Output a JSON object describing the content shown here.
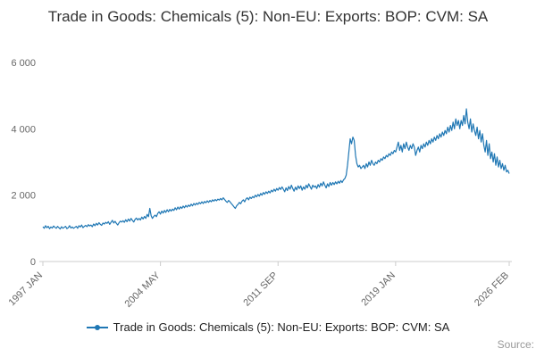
{
  "page": {
    "title": "Trade in Goods: Chemicals (5): Non-EU: Exports: BOP: CVM: SA",
    "source_label": "Source:"
  },
  "legend": {
    "label": "Trade in Goods: Chemicals (5): Non-EU: Exports: BOP: CVM: SA"
  },
  "chart_data": {
    "type": "line",
    "title": "Trade in Goods: Chemicals (5): Non-EU: Exports: BOP: CVM: SA",
    "xlabel": "",
    "ylabel": "",
    "ylim": [
      0,
      6000
    ],
    "grid": false,
    "legend_position": "bottom",
    "line_color": "#1f77b4",
    "axis_color": "#cccccc",
    "frequency": "monthly",
    "start": "1997 JAN",
    "end": "2026 FEB",
    "y_ticks": [
      0,
      2000,
      4000,
      6000
    ],
    "y_tick_labels": [
      "0",
      "2 000",
      "4 000",
      "6 000"
    ],
    "x_tick_labels": [
      "1997 JAN",
      "2004 MAY",
      "2011 SEP",
      "2019 JAN",
      "2026 FEB"
    ],
    "x_tick_positions": [
      0,
      88,
      176,
      264,
      349
    ],
    "series": [
      {
        "name": "Trade in Goods: Chemicals (5): Non-EU: Exports: BOP: CVM: SA",
        "values": [
          1050,
          1000,
          1080,
          1020,
          1060,
          990,
          1040,
          1010,
          1070,
          1030,
          1000,
          1060,
          1020,
          980,
          1050,
          1000,
          1030,
          1060,
          990,
          1020,
          1080,
          1010,
          1040,
          1000,
          1030,
          1060,
          1000,
          1080,
          1040,
          1100,
          1020,
          1060,
          1090,
          1050,
          1110,
          1070,
          1100,
          1050,
          1130,
          1080,
          1150,
          1100,
          1170,
          1120,
          1090,
          1160,
          1130,
          1180,
          1150,
          1200,
          1120,
          1180,
          1240,
          1160,
          1210,
          1150,
          1100,
          1170,
          1220,
          1190,
          1230,
          1180,
          1260,
          1200,
          1280,
          1220,
          1300,
          1240,
          1190,
          1270,
          1310,
          1250,
          1300,
          1250,
          1340,
          1280,
          1360,
          1300,
          1420,
          1350,
          1600,
          1380,
          1300,
          1360,
          1400,
          1350,
          1450,
          1500,
          1430,
          1520,
          1460,
          1540,
          1480,
          1560,
          1500,
          1570,
          1520,
          1580,
          1540,
          1620,
          1560,
          1640,
          1580,
          1650,
          1600,
          1670,
          1620,
          1690,
          1640,
          1700,
          1660,
          1730,
          1680,
          1750,
          1700,
          1760,
          1720,
          1780,
          1740,
          1800,
          1750,
          1810,
          1770,
          1830,
          1780,
          1840,
          1800,
          1860,
          1820,
          1870,
          1830,
          1880,
          1850,
          1900,
          1860,
          1920,
          1870,
          1820,
          1780,
          1840,
          1800,
          1750,
          1700,
          1650,
          1600,
          1680,
          1720,
          1780,
          1740,
          1820,
          1860,
          1800,
          1880,
          1920,
          1860,
          1940,
          1900,
          1960,
          1920,
          2000,
          1950,
          2020,
          1970,
          2050,
          2000,
          2080,
          2030,
          2100,
          2050,
          2120,
          2070,
          2150,
          2100,
          2180,
          2120,
          2200,
          2150,
          2230,
          2170,
          2250,
          2180,
          2100,
          2220,
          2140,
          2260,
          2180,
          2300,
          2200,
          2120,
          2240,
          2160,
          2280,
          2200,
          2280,
          2150,
          2250,
          2180,
          2300,
          2220,
          2340,
          2260,
          2180,
          2300,
          2240,
          2280,
          2200,
          2320,
          2240,
          2360,
          2280,
          2400,
          2300,
          2220,
          2340,
          2260,
          2380,
          2300,
          2380,
          2320,
          2400,
          2340,
          2420,
          2360,
          2440,
          2380,
          2460,
          2500,
          2600,
          2900,
          3300,
          3700,
          3550,
          3750,
          3650,
          3200,
          2950,
          2850,
          2900,
          2800,
          2850,
          2900,
          2800,
          2950,
          2850,
          3000,
          2900,
          3050,
          2950,
          2900,
          3000,
          2950,
          3050,
          3000,
          3100,
          3050,
          3150,
          3100,
          3200,
          3150,
          3250,
          3200,
          3300,
          3250,
          3350,
          3300,
          3450,
          3600,
          3350,
          3500,
          3300,
          3550,
          3400,
          3600,
          3450,
          3350,
          3500,
          3400,
          3550,
          3450,
          3200,
          3350,
          3450,
          3300,
          3500,
          3400,
          3550,
          3450,
          3600,
          3500,
          3650,
          3550,
          3700,
          3600,
          3750,
          3650,
          3800,
          3700,
          3850,
          3750,
          3900,
          3800,
          3950,
          3850,
          4050,
          3900,
          4100,
          3950,
          4200,
          4000,
          4300,
          4100,
          4250,
          4000,
          4250,
          4100,
          4400,
          4150,
          4600,
          4200,
          4000,
          4300,
          3900,
          4150,
          3950,
          3800,
          4050,
          3700,
          3950,
          3600,
          3850,
          3500,
          3300,
          3650,
          3200,
          3550,
          3100,
          3300,
          3000,
          3250,
          2900,
          3150,
          2850,
          3050,
          2800,
          2950,
          2750,
          2900,
          2700,
          2750,
          2650
        ]
      }
    ]
  }
}
